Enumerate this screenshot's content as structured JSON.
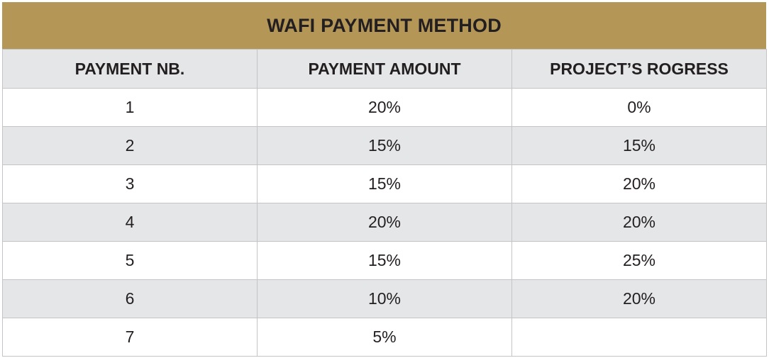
{
  "title": "WAFI PAYMENT METHOD",
  "columns": [
    "PAYMENT NB.",
    "PAYMENT AMOUNT",
    "PROJECT’S ROGRESS"
  ],
  "rows": [
    [
      "1",
      "20%",
      "0%"
    ],
    [
      "2",
      "15%",
      "15%"
    ],
    [
      "3",
      "15%",
      "20%"
    ],
    [
      "4",
      "20%",
      "20%"
    ],
    [
      "5",
      "15%",
      "25%"
    ],
    [
      "6",
      "10%",
      "20%"
    ],
    [
      "7",
      "5%",
      ""
    ]
  ],
  "colors": {
    "title_bar": "#b49657",
    "header_bg": "#e5e6e8",
    "stripe_bg": "#e5e6e8",
    "text": "#231f20"
  }
}
